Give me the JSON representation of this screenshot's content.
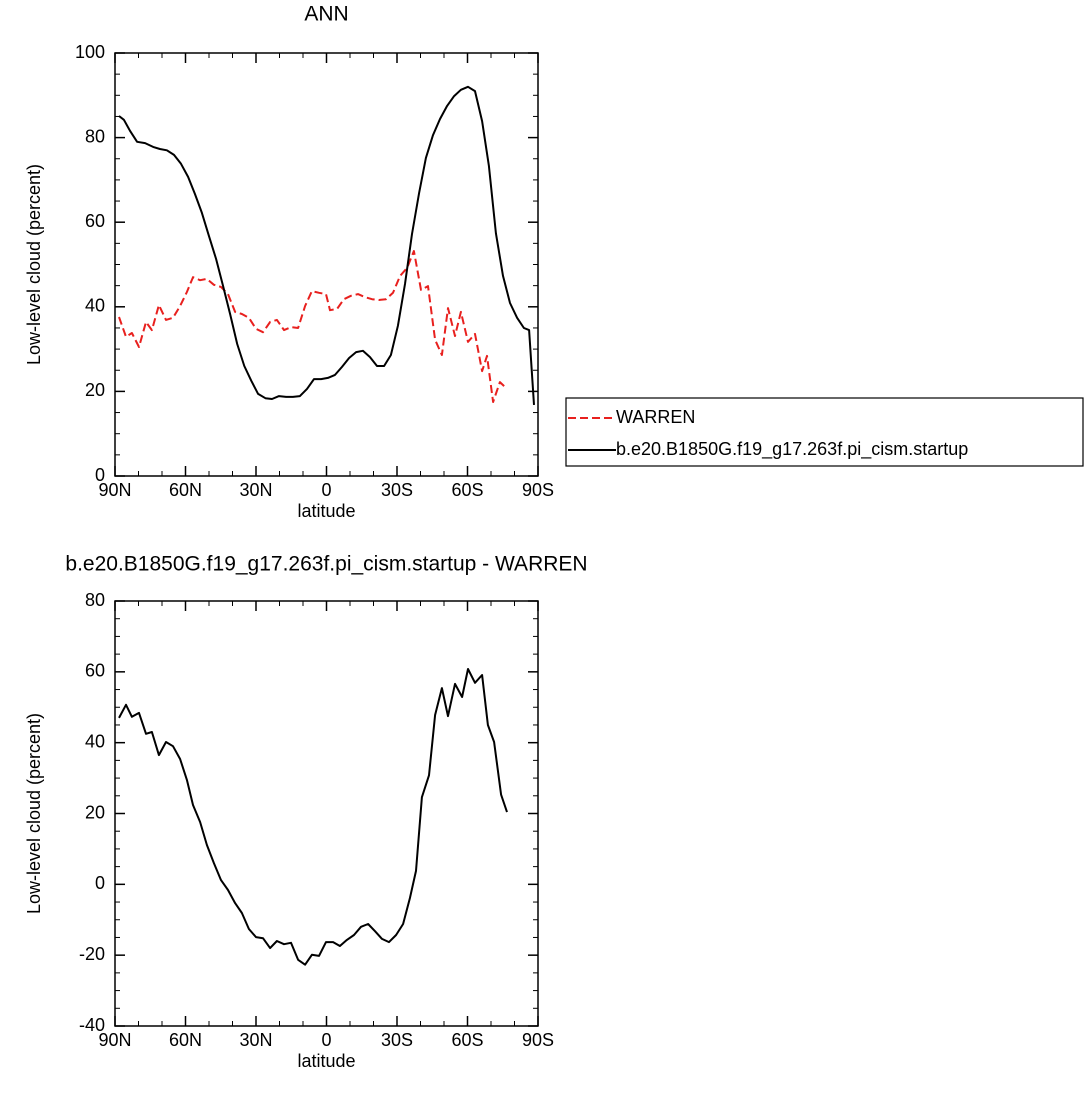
{
  "chart_data": [
    {
      "type": "line",
      "title": "ANN",
      "xlabel": "latitude",
      "ylabel": "Low-level cloud (percent)",
      "xlim": [
        90,
        -90
      ],
      "ylim": [
        0,
        100
      ],
      "xticks": [
        {
          "value": 90,
          "label": "90N"
        },
        {
          "value": 60,
          "label": "60N"
        },
        {
          "value": 30,
          "label": "30N"
        },
        0,
        {
          "value": -30,
          "label": "30S"
        },
        {
          "value": -60,
          "label": "60S"
        },
        {
          "value": -90,
          "label": "90S"
        }
      ],
      "yticks": [
        0,
        20,
        40,
        60,
        80,
        100
      ],
      "legend": "right",
      "series": [
        {
          "name": "WARREN",
          "color": "#e8201e",
          "style": "dashed",
          "x": [
            88.3,
            85.3,
            82.8,
            79.8,
            76.8,
            74.3,
            71.3,
            68.3,
            65.3,
            62.3,
            59.4,
            56.8,
            53.8,
            50.9,
            47.9,
            44.9,
            41.9,
            38.9,
            36,
            33,
            30,
            27,
            24,
            21.1,
            18.1,
            15.1,
            12.1,
            9.1,
            6.2,
            3.2,
            0.2,
            -1.5,
            -4.5,
            -7.4,
            -10.4,
            -13.4,
            -16.4,
            -19.4,
            -22.3,
            -25.3,
            -28.3,
            -31.3,
            -34.3,
            -37.2,
            -40.2,
            -43.2,
            -46.2,
            -49.1,
            -51.7,
            -54.7,
            -57.2,
            -60.2,
            -63.2,
            -66.2,
            -68.3,
            -70.9,
            -73.8,
            -76.8
          ],
          "values": [
            37.6,
            32.9,
            33.8,
            30.5,
            36.4,
            34.5,
            40.4,
            36.9,
            37.4,
            40.2,
            43.5,
            47,
            46.3,
            46.6,
            45.2,
            44.7,
            43,
            38.8,
            38.3,
            37.4,
            34.8,
            34,
            36.4,
            36.9,
            34.5,
            35.2,
            35,
            40.2,
            43.7,
            43.3,
            43,
            39.2,
            39.5,
            41.8,
            42.6,
            43,
            42.3,
            41.8,
            41.6,
            41.8,
            43.3,
            47.3,
            49.2,
            53.2,
            44,
            44.9,
            32.2,
            28.6,
            39.7,
            33.1,
            38.8,
            31.7,
            33.6,
            24.8,
            28.4,
            17.5,
            22.2,
            20.6
          ]
        },
        {
          "name": "b.e20.B1850G.f19_g17.263f.pi_cism.startup",
          "color": "#000000",
          "style": "solid",
          "x": [
            88.3,
            86.2,
            83.6,
            80.6,
            77.2,
            73.8,
            70.9,
            67.9,
            64.9,
            61.9,
            58.9,
            56,
            53,
            50,
            47,
            44,
            41,
            38,
            35,
            32,
            29.1,
            26,
            23.2,
            20.2,
            17.2,
            14.3,
            11.3,
            8.3,
            5.3,
            2.3,
            -0.6,
            -3.6,
            -6.6,
            -9.6,
            -12.6,
            -15.5,
            -18.5,
            -21.5,
            -24.5,
            -27.4,
            -30.4,
            -33.4,
            -36.4,
            -39.4,
            -42.3,
            -45.3,
            -48.3,
            -51.3,
            -54.3,
            -57.2,
            -60.2,
            -63.2,
            -66.2,
            -69.1,
            -72.1,
            -75.1,
            -78.1,
            -81.1,
            -84,
            -86.2,
            -88.3
          ],
          "values": [
            85.1,
            84.2,
            81.6,
            79,
            78.7,
            77.8,
            77.3,
            77,
            75.9,
            73.8,
            70.7,
            66.7,
            62.2,
            56.7,
            51.3,
            44.9,
            38.3,
            31.2,
            26,
            22.5,
            19.4,
            18.4,
            18.2,
            18.9,
            18.7,
            18.7,
            18.9,
            20.6,
            22.9,
            22.9,
            23.2,
            23.9,
            25.8,
            27.9,
            29.3,
            29.6,
            28.1,
            26,
            26,
            28.6,
            35.5,
            45.4,
            57.2,
            66.9,
            75.2,
            80.6,
            84.4,
            87.5,
            89.8,
            91.3,
            92,
            91,
            83.9,
            73.3,
            57.4,
            47.3,
            40.9,
            37.4,
            35,
            34.5,
            16.8
          ]
        }
      ]
    },
    {
      "type": "line",
      "title": "b.e20.B1850G.f19_g17.263f.pi_cism.startup - WARREN",
      "xlabel": "latitude",
      "ylabel": "Low-level cloud (percent)",
      "xlim": [
        90,
        -90
      ],
      "ylim": [
        -40,
        80
      ],
      "xticks": [
        {
          "value": 90,
          "label": "90N"
        },
        {
          "value": 60,
          "label": "60N"
        },
        {
          "value": 30,
          "label": "30N"
        },
        0,
        {
          "value": -30,
          "label": "30S"
        },
        {
          "value": -60,
          "label": "60S"
        },
        {
          "value": -90,
          "label": "90S"
        }
      ],
      "yticks": [
        -40,
        -20,
        0,
        20,
        40,
        60,
        80
      ],
      "series": [
        {
          "color": "#000000",
          "style": "solid",
          "x": [
            88.3,
            85.3,
            82.8,
            79.8,
            76.8,
            74.3,
            71.3,
            68.3,
            65.3,
            62.3,
            59.4,
            56.8,
            53.8,
            50.9,
            47.9,
            44.9,
            41.9,
            38.9,
            36,
            33,
            30,
            27,
            24,
            21.1,
            18.1,
            15.1,
            12.1,
            9.1,
            6.2,
            3.2,
            0.2,
            -2.8,
            -5.7,
            -8.7,
            -11.7,
            -14.7,
            -17.7,
            -20.6,
            -23.6,
            -26.6,
            -29.6,
            -32.6,
            -35.5,
            -38.1,
            -40.6,
            -43.6,
            -46.2,
            -49.1,
            -51.7,
            -54.7,
            -57.7,
            -60.2,
            -63.2,
            -66.2,
            -68.7,
            -71.3,
            -74.3,
            -76.8
          ],
          "values": [
            47,
            50.7,
            47.3,
            48.4,
            42.5,
            43,
            36.5,
            40.2,
            39,
            35.4,
            29.5,
            22.4,
            17.6,
            11.1,
            6,
            1.2,
            -1.6,
            -5.3,
            -8.1,
            -12.6,
            -14.9,
            -15.2,
            -18,
            -16,
            -16.9,
            -16.5,
            -21.3,
            -22.7,
            -19.9,
            -20.2,
            -16.3,
            -16.3,
            -17.4,
            -15.7,
            -14.3,
            -12,
            -11.2,
            -13.2,
            -15.4,
            -16.3,
            -14.3,
            -11.2,
            -3.9,
            3.8,
            24.6,
            30.8,
            47.8,
            55.4,
            47.5,
            56.6,
            52.9,
            60.8,
            56.9,
            59.1,
            45,
            40.2,
            25.3,
            20.4
          ]
        }
      ]
    }
  ]
}
